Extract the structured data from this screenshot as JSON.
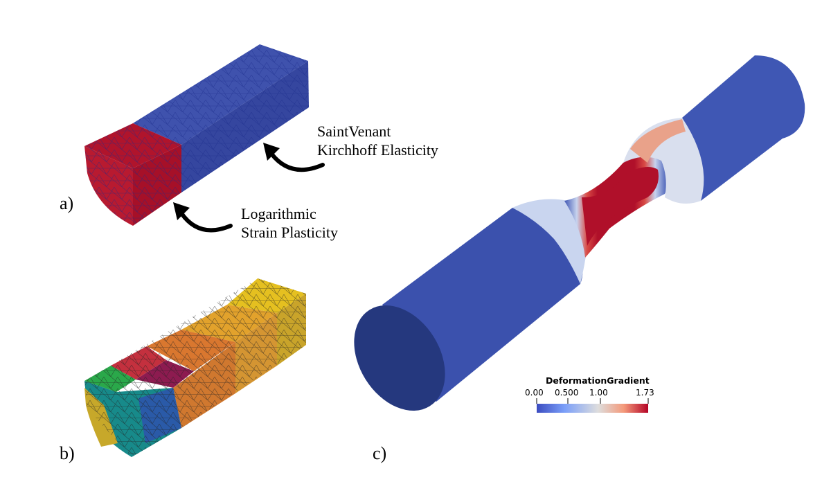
{
  "panels": {
    "a": {
      "label": "a)",
      "annotation_elastic": [
        "SaintVenant",
        "Kirchhoff Elasticity"
      ],
      "annotation_plastic": [
        "Logarithmic",
        "Strain Plasticity"
      ],
      "colors": {
        "elastic": "#3a4aa6",
        "plastic": "#b0102a",
        "mesh": "#1a2a8a"
      }
    },
    "b": {
      "label": "b)",
      "grain_colors": [
        "#e7c21c",
        "#e0a22e",
        "#d8782e",
        "#c7303c",
        "#8c1a4f",
        "#2aa84a",
        "#178a8a",
        "#2a5aa8",
        "#c7a82a"
      ]
    },
    "c": {
      "label": "c)",
      "colorbar": {
        "title": "DeformationGradient",
        "ticks": [
          "0.00",
          "0.500",
          "1.00",
          "1.73"
        ],
        "colors": {
          "low": "#3b4cc0",
          "mid": "#dddddd",
          "high": "#b40426"
        }
      }
    }
  }
}
